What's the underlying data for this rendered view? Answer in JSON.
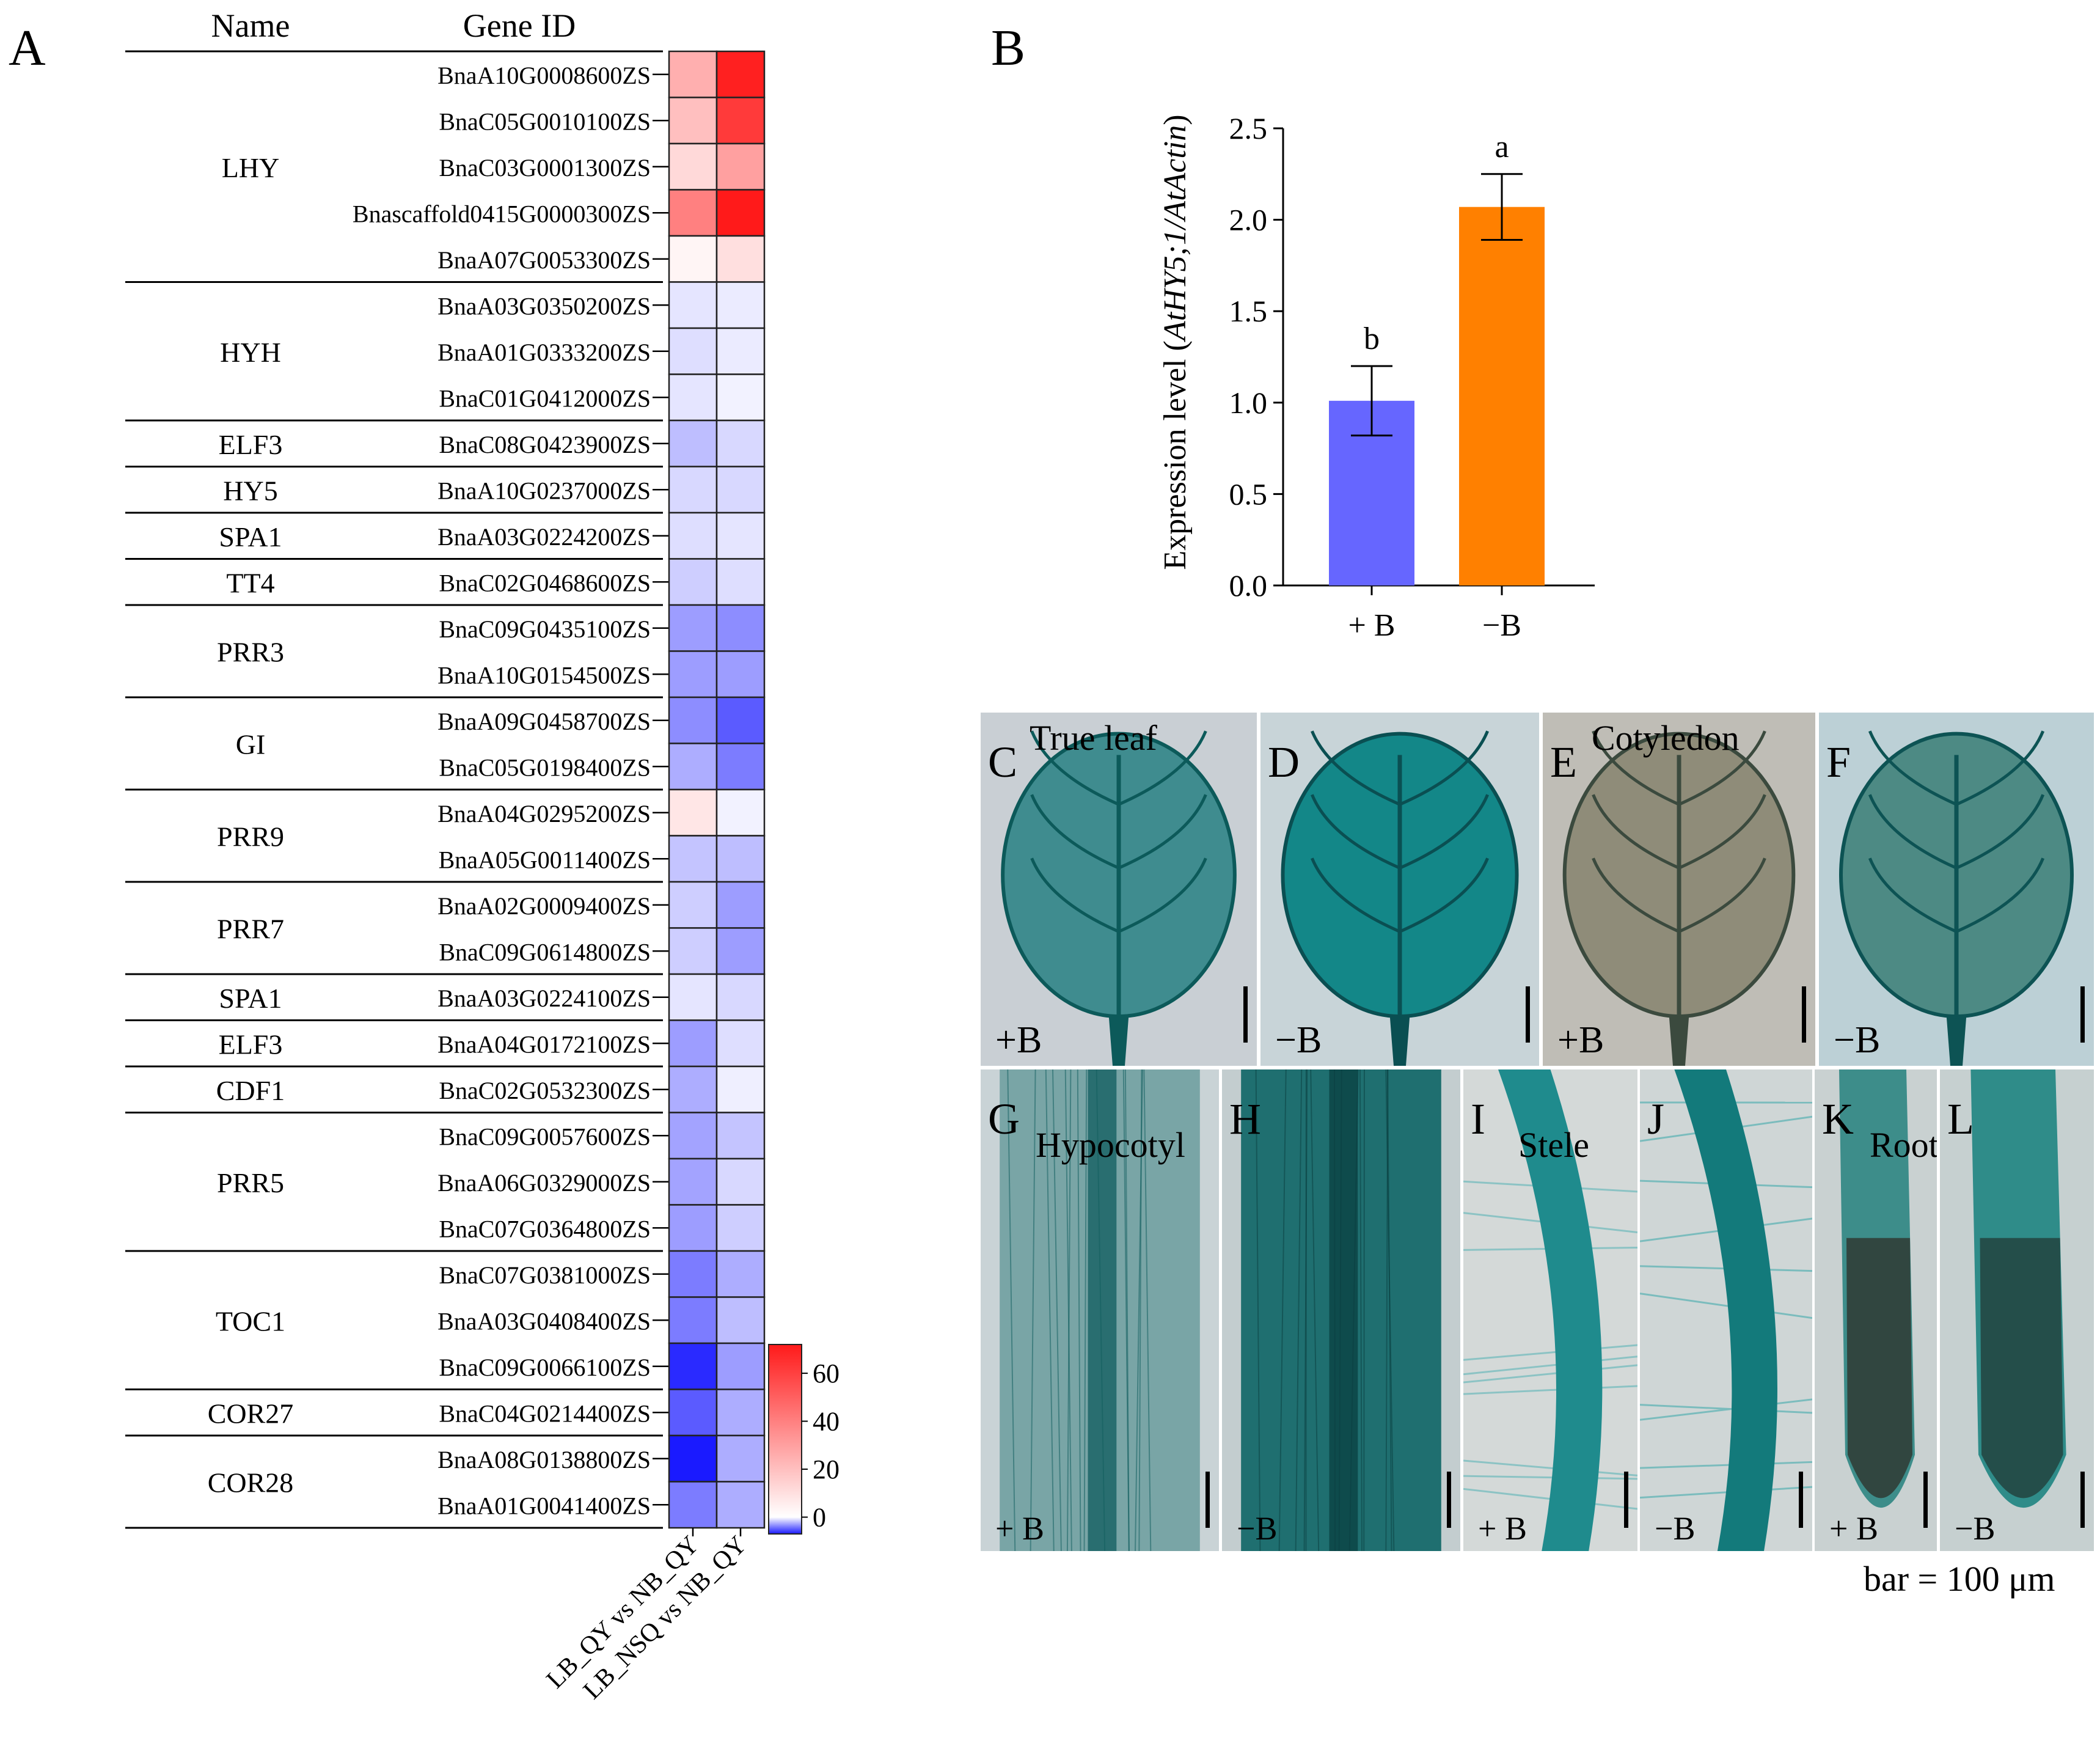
{
  "panel_a": {
    "letter": "A",
    "headers": {
      "name": "Name",
      "gene_id": "Gene ID"
    },
    "columns": [
      "LB_QY vs NB_QY",
      "LB_NSQ vs NB_QY"
    ],
    "groups": [
      {
        "name": "LHY",
        "rows": [
          0,
          4
        ]
      },
      {
        "name": "HYH",
        "rows": [
          5,
          7
        ]
      },
      {
        "name": "ELF3",
        "rows": [
          8,
          8
        ]
      },
      {
        "name": "HY5",
        "rows": [
          9,
          9
        ]
      },
      {
        "name": "SPA1",
        "rows": [
          10,
          10
        ]
      },
      {
        "name": "TT4",
        "rows": [
          11,
          11
        ]
      },
      {
        "name": "PRR3",
        "rows": [
          12,
          13
        ]
      },
      {
        "name": "GI",
        "rows": [
          14,
          15
        ]
      },
      {
        "name": "PRR9",
        "rows": [
          16,
          17
        ]
      },
      {
        "name": "PRR7",
        "rows": [
          18,
          19
        ]
      },
      {
        "name": "SPA1",
        "rows": [
          20,
          20
        ]
      },
      {
        "name": "ELF3",
        "rows": [
          21,
          21
        ]
      },
      {
        "name": "CDF1",
        "rows": [
          22,
          22
        ]
      },
      {
        "name": "PRR5",
        "rows": [
          23,
          25
        ]
      },
      {
        "name": "TOC1",
        "rows": [
          26,
          28
        ]
      },
      {
        "name": "COR27",
        "rows": [
          29,
          29
        ]
      },
      {
        "name": "COR28",
        "rows": [
          30,
          31
        ]
      }
    ],
    "colorbar": {
      "ticks": [
        "60",
        "40",
        "20",
        "0"
      ],
      "min": -7,
      "max": 72,
      "low_color": "#1a1aff",
      "mid_color": "#ffffff",
      "high_color": "#ff1a1a"
    }
  },
  "chart_data": [
    {
      "type": "heatmap",
      "rows": [
        "BnaA10G0008600ZS",
        "BnaC05G0010100ZS",
        "BnaC03G0001300ZS",
        "Bnascaffold0415G0000300ZS",
        "BnaA07G0053300ZS",
        "BnaA03G0350200ZS",
        "BnaA01G0333200ZS",
        "BnaC01G0412000ZS",
        "BnaC08G0423900ZS",
        "BnaA10G0237000ZS",
        "BnaA03G0224200ZS",
        "BnaC02G0468600ZS",
        "BnaC09G0435100ZS",
        "BnaA10G0154500ZS",
        "BnaA09G0458700ZS",
        "BnaC05G0198400ZS",
        "BnaA04G0295200ZS",
        "BnaA05G0011400ZS",
        "BnaA02G0009400ZS",
        "BnaC09G0614800ZS",
        "BnaA03G0224100ZS",
        "BnaA04G0172100ZS",
        "BnaC02G0532300ZS",
        "BnaC09G0057600ZS",
        "BnaA06G0329000ZS",
        "BnaC07G0364800ZS",
        "BnaC07G0381000ZS",
        "BnaA03G0408400ZS",
        "BnaC09G0066100ZS",
        "BnaC04G0214400ZS",
        "BnaA08G0138800ZS",
        "BnaA01G0041400ZS"
      ],
      "columns": [
        "LB_QY vs NB_QY",
        "LB_NSQ vs NB_QY"
      ],
      "values": [
        [
          25,
          70
        ],
        [
          20,
          62
        ],
        [
          12,
          30
        ],
        [
          40,
          72
        ],
        [
          3,
          10
        ],
        [
          -0.8,
          -0.6
        ],
        [
          -1.0,
          -0.6
        ],
        [
          -0.8,
          -0.4
        ],
        [
          -2.0,
          -1.2
        ],
        [
          -1.2,
          -1.2
        ],
        [
          -1.0,
          -0.8
        ],
        [
          -1.5,
          -1.0
        ],
        [
          -3.0,
          -3.5
        ],
        [
          -3.0,
          -3.0
        ],
        [
          -3.5,
          -5.0
        ],
        [
          -2.5,
          -4.0
        ],
        [
          8,
          -0.4
        ],
        [
          -1.8,
          -2.0
        ],
        [
          -1.5,
          -3.0
        ],
        [
          -1.5,
          -3.0
        ],
        [
          -0.8,
          -1.2
        ],
        [
          -3.0,
          -1.0
        ],
        [
          -2.5,
          -0.5
        ],
        [
          -2.8,
          -1.8
        ],
        [
          -2.8,
          -1.2
        ],
        [
          -3.0,
          -1.5
        ],
        [
          -4.0,
          -2.5
        ],
        [
          -4.0,
          -2.0
        ],
        [
          -6.5,
          -3.0
        ],
        [
          -5.0,
          -2.5
        ],
        [
          -7.0,
          -2.5
        ],
        [
          -4.0,
          -2.5
        ]
      ]
    },
    {
      "type": "bar",
      "categories": [
        "+ B",
        "−B"
      ],
      "values": [
        1.01,
        2.07
      ],
      "errors": [
        0.19,
        0.18
      ],
      "significance": [
        "b",
        "a"
      ],
      "colors": [
        "#6666ff",
        "#ff8000"
      ],
      "ylabel_prefix": "Expression level (",
      "ylabel_italic": "AtHY5;1/AtActin",
      "ylabel_suffix": ")",
      "yticks": [
        "0.0",
        "0.5",
        "1.0",
        "1.5",
        "2.0",
        "2.5"
      ],
      "ylim": [
        0,
        2.5
      ]
    }
  ],
  "panel_b": {
    "letter": "B"
  },
  "micrographs": {
    "row1": [
      {
        "letter": "C",
        "title": "True leaf",
        "treatment": "+B"
      },
      {
        "letter": "D",
        "title": "",
        "treatment": "−B"
      },
      {
        "letter": "E",
        "title": "Cotyledon",
        "treatment": "+B"
      },
      {
        "letter": "F",
        "title": "",
        "treatment": "−B"
      }
    ],
    "row2": [
      {
        "letter": "G",
        "title": "Hypocotyl",
        "treatment": "+ B"
      },
      {
        "letter": "H",
        "title": "",
        "treatment": "−B"
      },
      {
        "letter": "I",
        "title": "Stele",
        "treatment": "+ B"
      },
      {
        "letter": "J",
        "title": "",
        "treatment": "−B"
      },
      {
        "letter": "K",
        "title": "Root tip",
        "treatment": "+ B"
      },
      {
        "letter": "L",
        "title": "",
        "treatment": "−B"
      }
    ],
    "scale_note": "bar = 100 μm"
  }
}
